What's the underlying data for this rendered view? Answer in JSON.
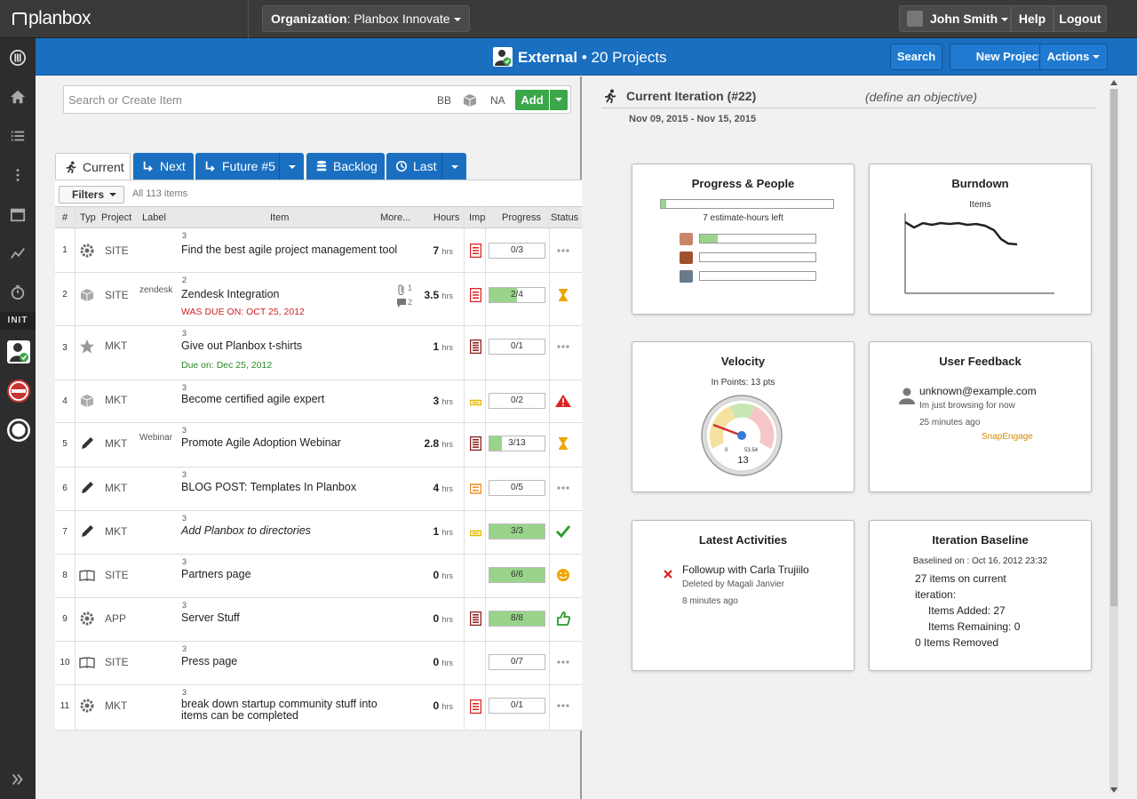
{
  "topbar": {
    "logo": "planbox",
    "org_label": "Organization",
    "org_name": ": Planbox Innovate",
    "user_name": "John Smith",
    "help": "Help",
    "logout": "Logout"
  },
  "leftnav": {
    "section_label": "INIT"
  },
  "project_header": {
    "title": "External",
    "count": "• 20 Projects",
    "search": "Search",
    "new_project": "New Project",
    "actions": "Actions"
  },
  "search": {
    "placeholder": "Search or Create Item",
    "tag1": "BB",
    "tag2": "NA",
    "add": "Add"
  },
  "tabs": [
    {
      "label": "Current"
    },
    {
      "label": "Next"
    },
    {
      "label": "Future #5"
    },
    {
      "label": "Backlog"
    },
    {
      "label": "Last"
    }
  ],
  "filters": {
    "label": "Filters",
    "count": "All 113 items"
  },
  "table": {
    "headers": {
      "num": "#",
      "typ": "Typ",
      "project": "Project",
      "label": "Label",
      "item": "Item",
      "more": "More...",
      "hours": "Hours",
      "imp": "Imp",
      "progress": "Progress",
      "status": "Status"
    },
    "rows": [
      {
        "num": "1",
        "project": "SITE",
        "label": "",
        "pts": "3",
        "title": "Find the best agile project management tool",
        "due": "",
        "hours": "7",
        "unit": "hrs",
        "progress": "0/3",
        "fill": 0
      },
      {
        "num": "2",
        "project": "SITE",
        "label": "zendesk",
        "pts": "2",
        "title": "Zendesk Integration",
        "due": "WAS DUE ON: OCT 25, 2012",
        "attach": "1",
        "comments": "2",
        "hours": "3.5",
        "unit": "hrs",
        "progress": "2/4",
        "fill": 0.5
      },
      {
        "num": "3",
        "project": "MKT",
        "label": "",
        "pts": "3",
        "title": "Give out Planbox t-shirts",
        "due": "Due on: Dec 25, 2012",
        "hours": "1",
        "unit": "hrs",
        "progress": "0/1",
        "fill": 0
      },
      {
        "num": "4",
        "project": "MKT",
        "label": "",
        "pts": "3",
        "title": "Become certified agile expert",
        "due": "",
        "hours": "3",
        "unit": "hrs",
        "progress": "0/2",
        "fill": 0
      },
      {
        "num": "5",
        "project": "MKT",
        "label": "Webinar",
        "pts": "3",
        "title": "Promote Agile Adoption Webinar",
        "due": "",
        "hours": "2.8",
        "unit": "hrs",
        "progress": "3/13",
        "fill": 0.23
      },
      {
        "num": "6",
        "project": "MKT",
        "label": "",
        "pts": "3",
        "title": "BLOG POST: Templates In Planbox",
        "due": "",
        "hours": "4",
        "unit": "hrs",
        "progress": "0/5",
        "fill": 0
      },
      {
        "num": "7",
        "project": "MKT",
        "label": "",
        "pts": "3",
        "title": "Add Planbox to directories",
        "due": "",
        "hours": "1",
        "unit": "hrs",
        "progress": "3/3",
        "fill": 1
      },
      {
        "num": "8",
        "project": "SITE",
        "label": "",
        "pts": "3",
        "title": "Partners  page",
        "due": "",
        "hours": "0",
        "unit": "hrs",
        "progress": "6/6",
        "fill": 1
      },
      {
        "num": "9",
        "project": "APP",
        "label": "",
        "pts": "3",
        "title": "Server Stuff",
        "due": "",
        "hours": "0",
        "unit": "hrs",
        "progress": "8/8",
        "fill": 1
      },
      {
        "num": "10",
        "project": "SITE",
        "label": "",
        "pts": "3",
        "title": "Press page",
        "due": "",
        "hours": "0",
        "unit": "hrs",
        "progress": "0/7",
        "fill": 0
      },
      {
        "num": "11",
        "project": "MKT",
        "label": "",
        "pts": "3",
        "title": "break down startup community stuff into items can be completed",
        "due": "",
        "hours": "0",
        "unit": "hrs",
        "progress": "0/1",
        "fill": 0
      }
    ]
  },
  "iteration": {
    "title": "Current Iteration (#22)",
    "objective": "(define an objective)",
    "dates": "Nov 09, 2015 - Nov 15, 2015"
  },
  "cards": {
    "progress": {
      "title": "Progress & People",
      "left": "7 estimate-hours left",
      "overall": 0.03,
      "people": [
        0.15,
        0,
        0
      ]
    },
    "burndown": {
      "title": "Burndown",
      "subtitle": "Items"
    },
    "velocity": {
      "title": "Velocity",
      "subtitle": "In Points: 13 pts",
      "min": "0",
      "max": "53.54",
      "value": "13"
    },
    "feedback": {
      "title": "User Feedback",
      "user": "unknown@example.com",
      "message": "Im just browsing for now",
      "time": "25 minutes ago",
      "source": "SnapEngage"
    },
    "activities": {
      "title": "Latest Activities",
      "item": "Followup with Carla Trujiilo",
      "by": "Deleted by Magali Janvier",
      "time": "8 minutes ago"
    },
    "baseline": {
      "title": "Iteration Baseline",
      "baselined": "Baselined on : Oct 16, 2012 23:32",
      "items_line1": "27 items on current",
      "items_line2": "iteration:",
      "added": "Items Added: 27",
      "remaining": "Items Remaining: 0",
      "removed": "0 Items Removed"
    }
  },
  "colors": {
    "brand_blue": "#1a6fc0",
    "add_green": "#3aa84a",
    "progress_green": "#9ad48c",
    "due_red": "#cc2222",
    "due_green": "#2a8a2a"
  }
}
